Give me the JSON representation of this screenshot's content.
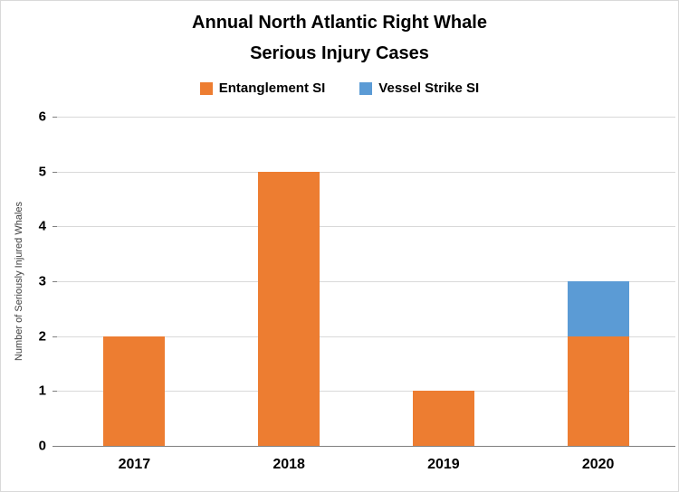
{
  "title": {
    "line1": "Annual North Atlantic Right Whale",
    "line2": "Serious Injury  Cases"
  },
  "chart_data": {
    "type": "bar",
    "stacked": true,
    "title": "Annual North Atlantic Right Whale Serious Injury Cases",
    "categories": [
      "2017",
      "2018",
      "2019",
      "2020"
    ],
    "series": [
      {
        "name": "Entanglement SI",
        "color": "#ED7D31",
        "values": [
          2,
          5,
          1,
          2
        ]
      },
      {
        "name": "Vessel Strike SI",
        "color": "#5B9BD5",
        "values": [
          0,
          0,
          0,
          1
        ]
      }
    ],
    "xlabel": "",
    "ylabel": "Number of Seriously Injured  Whales",
    "ylim": [
      0,
      6
    ],
    "ytick_step": 1,
    "grid": true,
    "legend_position": "top"
  },
  "colors": {
    "entanglement": "#ED7D31",
    "vessel_strike": "#5B9BD5",
    "gridline": "#D9D9D9",
    "axis": "#7F7F7F",
    "background": "#FFFFFF",
    "text": "#000000"
  }
}
